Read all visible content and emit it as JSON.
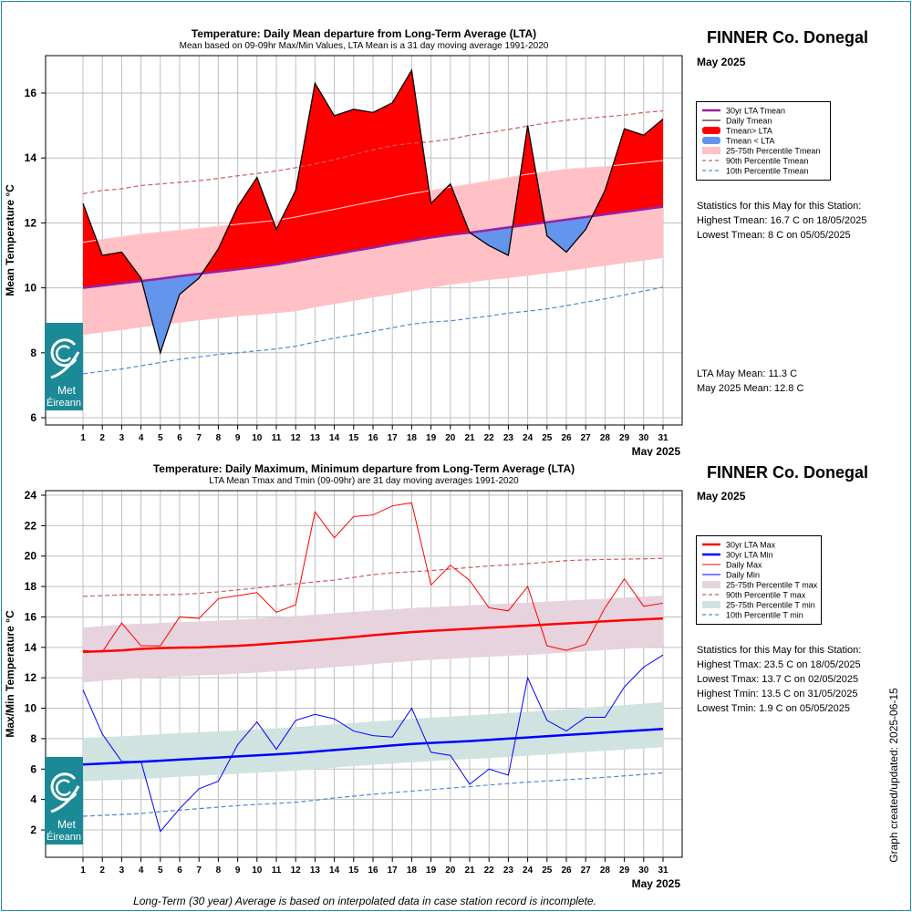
{
  "footer_note": "Long-Term (30 year) Average is based on interpolated data in case station record is incomplete.",
  "updated_label": "Graph created/updated:  2025-06-15",
  "logo": {
    "line1": "Met",
    "line2": "Éireann",
    "icon": "met-eireann-swirl-icon"
  },
  "colors": {
    "above": "#ff0000",
    "below": "#6495ed",
    "lta_mean": "#9b1fa3",
    "pct25_75_mean": "#ffc0c6",
    "p90": "#cd5c5c",
    "p10": "#4f87d6",
    "tmax": "#ff0000",
    "tmin": "#0000ff",
    "pct_max": "#e6d3dd",
    "pct_min": "#d0e3e1",
    "logo": "#1c8a96"
  },
  "panels": [
    {
      "station": "FINNER Co. Donegal",
      "month_label": "May 2025",
      "stats_title": "Statistics for this May for this Station:",
      "stats": [
        "Highest Tmean: 16.7 C on 18/05/2025",
        "Lowest Tmean: 8 C on 05/05/2025"
      ],
      "lta_lines": [
        "LTA May Mean: 11.3 C",
        "May 2025 Mean: 12.8 C"
      ],
      "chart_data": {
        "type": "area",
        "title": "Temperature: Daily Mean departure from Long-Term Average (LTA)",
        "subtitle": "Mean based on 09-09hr Max/Min Values, LTA Mean is a 31 day moving average 1991-2020",
        "xlabel": "May 2025",
        "ylabel": "Mean Temperature °C",
        "xlim": [
          1,
          31
        ],
        "ylim": [
          6,
          17
        ],
        "yticks": [
          6,
          8,
          10,
          12,
          14,
          16
        ],
        "x": [
          1,
          2,
          3,
          4,
          5,
          6,
          7,
          8,
          9,
          10,
          11,
          12,
          13,
          14,
          15,
          16,
          17,
          18,
          19,
          20,
          21,
          22,
          23,
          24,
          25,
          26,
          27,
          28,
          29,
          30,
          31
        ],
        "grid": true,
        "legend": {
          "placement": "right",
          "entries": [
            {
              "label": "30yr LTA Tmean",
              "style": "line",
              "color": "#9b1fa3",
              "width": 2.5
            },
            {
              "label": "Daily Tmean",
              "style": "line",
              "color": "#000000",
              "width": 1
            },
            {
              "label": "Tmean> LTA",
              "style": "box",
              "color": "#ff0000"
            },
            {
              "label": "Tmean < LTA",
              "style": "box",
              "color": "#6495ed"
            },
            {
              "label": "25-75th Percentile Tmean",
              "style": "band",
              "color": "#ffc0c6"
            },
            {
              "label": "90th Percentile Tmean",
              "style": "dash",
              "color": "#cd5c5c"
            },
            {
              "label": "10th Percentile Tmean",
              "style": "dash",
              "color": "#4f87d6"
            }
          ]
        },
        "series": [
          {
            "name": "Daily Tmean",
            "values": [
              12.6,
              11.0,
              11.1,
              10.3,
              8.0,
              9.8,
              10.3,
              11.2,
              12.5,
              13.4,
              11.8,
              13.0,
              16.3,
              15.3,
              15.5,
              15.4,
              15.7,
              16.7,
              12.6,
              13.2,
              11.7,
              11.3,
              11.0,
              15.0,
              11.6,
              11.1,
              11.8,
              13.0,
              14.9,
              14.7,
              15.2
            ]
          },
          {
            "name": "30yr LTA Tmean",
            "values": [
              10.0,
              10.07,
              10.14,
              10.21,
              10.28,
              10.36,
              10.43,
              10.5,
              10.57,
              10.64,
              10.72,
              10.82,
              10.93,
              11.03,
              11.14,
              11.24,
              11.35,
              11.45,
              11.55,
              11.63,
              11.7,
              11.78,
              11.86,
              11.94,
              12.02,
              12.1,
              12.18,
              12.26,
              12.34,
              12.42,
              12.5
            ]
          },
          {
            "name": "25th Percentile Tmean",
            "values": [
              8.55,
              8.63,
              8.7,
              8.78,
              8.86,
              8.93,
              9.0,
              9.06,
              9.12,
              9.17,
              9.22,
              9.28,
              9.4,
              9.5,
              9.6,
              9.7,
              9.8,
              9.9,
              10.0,
              10.1,
              10.17,
              10.24,
              10.3,
              10.37,
              10.45,
              10.52,
              10.6,
              10.68,
              10.76,
              10.84,
              10.92
            ]
          },
          {
            "name": "75th Percentile Tmean",
            "values": [
              11.4,
              11.5,
              11.58,
              11.66,
              11.72,
              11.78,
              11.84,
              11.9,
              11.96,
              12.02,
              12.08,
              12.18,
              12.3,
              12.42,
              12.54,
              12.66,
              12.78,
              12.9,
              13.0,
              13.1,
              13.2,
              13.3,
              13.4,
              13.5,
              13.58,
              13.66,
              13.7,
              13.74,
              13.8,
              13.86,
              13.92
            ]
          },
          {
            "name": "90th Percentile Tmean",
            "values": [
              12.9,
              13.0,
              13.05,
              13.15,
              13.2,
              13.25,
              13.3,
              13.37,
              13.45,
              13.52,
              13.6,
              13.7,
              13.82,
              13.95,
              14.1,
              14.25,
              14.38,
              14.45,
              14.5,
              14.58,
              14.7,
              14.78,
              14.88,
              14.98,
              15.08,
              15.16,
              15.22,
              15.27,
              15.32,
              15.4,
              15.45
            ]
          },
          {
            "name": "10th Percentile Tmean",
            "values": [
              7.35,
              7.43,
              7.5,
              7.6,
              7.7,
              7.8,
              7.87,
              7.95,
              8.0,
              8.06,
              8.12,
              8.2,
              8.33,
              8.45,
              8.55,
              8.66,
              8.77,
              8.88,
              8.95,
              8.98,
              9.06,
              9.13,
              9.22,
              9.28,
              9.35,
              9.45,
              9.56,
              9.66,
              9.78,
              9.9,
              10.02
            ]
          }
        ]
      }
    },
    {
      "station": "FINNER Co. Donegal",
      "month_label": "May 2025",
      "stats_title": "Statistics for this May for this Station:",
      "stats": [
        "Highest Tmax: 23.5 C on 18/05/2025",
        "Lowest Tmax: 13.7 C on 02/05/2025",
        "Highest Tmin: 13.5 C on 31/05/2025",
        "Lowest Tmin: 1.9 C on 05/05/2025"
      ],
      "lta_lines": [],
      "chart_data": {
        "type": "line",
        "title": "Temperature: Daily Maximum, Minimum departure from Long-Term Average (LTA)",
        "subtitle": "LTA Mean Tmax and Tmin (09-09hr) are 31 day moving averages 1991-2020",
        "xlabel": "May 2025",
        "ylabel": "Max/Min Temperature °C",
        "xlim": [
          1,
          31
        ],
        "ylim": [
          1,
          24.4
        ],
        "yticks": [
          2,
          4,
          6,
          8,
          10,
          12,
          14,
          16,
          18,
          20,
          22,
          24
        ],
        "x": [
          1,
          2,
          3,
          4,
          5,
          6,
          7,
          8,
          9,
          10,
          11,
          12,
          13,
          14,
          15,
          16,
          17,
          18,
          19,
          20,
          21,
          22,
          23,
          24,
          25,
          26,
          27,
          28,
          29,
          30,
          31
        ],
        "grid": true,
        "legend": {
          "placement": "right",
          "entries": [
            {
              "label": "30yr LTA Max",
              "style": "line",
              "color": "#ff0000",
              "width": 2.5
            },
            {
              "label": "30yr LTA Min",
              "style": "line",
              "color": "#0000ff",
              "width": 2.5
            },
            {
              "label": "Daily Max",
              "style": "line",
              "color": "#ff0000",
              "width": 1
            },
            {
              "label": "Daily Min",
              "style": "line",
              "color": "#0000ff",
              "width": 1
            },
            {
              "label": "25-75th Percentile T max",
              "style": "band",
              "color": "#e6d3dd"
            },
            {
              "label": "90th Percentile T max",
              "style": "dash",
              "color": "#cd5c5c"
            },
            {
              "label": "25-75th Percentile T min",
              "style": "band",
              "color": "#d0e3e1"
            },
            {
              "label": "10th Percentile T min",
              "style": "dash",
              "color": "#4f87d6"
            }
          ]
        },
        "series": [
          {
            "name": "Daily Max",
            "values": [
              13.8,
              13.7,
              15.6,
              14.1,
              14.1,
              16.0,
              15.9,
              17.2,
              17.4,
              17.6,
              16.3,
              16.8,
              22.9,
              21.2,
              22.6,
              22.7,
              23.3,
              23.5,
              18.1,
              19.4,
              18.4,
              16.6,
              16.4,
              18.0,
              14.1,
              13.8,
              14.2,
              16.6,
              18.5,
              16.7,
              16.9
            ]
          },
          {
            "name": "Daily Min",
            "values": [
              11.2,
              8.3,
              6.5,
              6.5,
              1.9,
              3.4,
              4.7,
              5.2,
              7.6,
              9.1,
              7.3,
              9.2,
              9.6,
              9.3,
              8.5,
              8.2,
              8.1,
              10.0,
              7.1,
              6.9,
              5.0,
              6.0,
              5.6,
              12.0,
              9.2,
              8.5,
              9.4,
              9.4,
              11.4,
              12.7,
              13.5
            ]
          },
          {
            "name": "30yr LTA Max",
            "values": [
              13.7,
              13.75,
              13.8,
              13.9,
              13.95,
              13.98,
              14.0,
              14.05,
              14.1,
              14.18,
              14.27,
              14.36,
              14.46,
              14.57,
              14.68,
              14.8,
              14.9,
              15.0,
              15.08,
              15.15,
              15.22,
              15.29,
              15.36,
              15.43,
              15.5,
              15.57,
              15.64,
              15.71,
              15.78,
              15.84,
              15.9
            ]
          },
          {
            "name": "30yr LTA Min",
            "values": [
              6.3,
              6.36,
              6.42,
              6.48,
              6.55,
              6.62,
              6.69,
              6.76,
              6.83,
              6.9,
              6.97,
              7.05,
              7.15,
              7.25,
              7.35,
              7.45,
              7.55,
              7.65,
              7.72,
              7.78,
              7.84,
              7.92,
              8.0,
              8.08,
              8.16,
              8.24,
              8.32,
              8.4,
              8.48,
              8.56,
              8.64
            ]
          },
          {
            "name": "25th Percentile T max",
            "values": [
              11.7,
              11.8,
              11.9,
              12.0,
              12.05,
              12.1,
              12.15,
              12.2,
              12.27,
              12.34,
              12.42,
              12.5,
              12.6,
              12.7,
              12.8,
              12.9,
              13.0,
              13.1,
              13.18,
              13.25,
              13.32,
              13.38,
              13.44,
              13.5,
              13.58,
              13.66,
              13.74,
              13.82,
              13.9,
              13.98,
              14.05
            ]
          },
          {
            "name": "75th Percentile T max",
            "values": [
              15.3,
              15.4,
              15.5,
              15.55,
              15.6,
              15.65,
              15.7,
              15.76,
              15.82,
              15.9,
              15.98,
              16.06,
              16.15,
              16.24,
              16.33,
              16.42,
              16.5,
              16.58,
              16.65,
              16.7,
              16.76,
              16.82,
              16.88,
              16.94,
              17.0,
              17.07,
              17.14,
              17.2,
              17.27,
              17.34,
              17.4
            ]
          },
          {
            "name": "90th Percentile T max",
            "values": [
              17.35,
              17.4,
              17.45,
              17.45,
              17.45,
              17.48,
              17.55,
              17.65,
              17.78,
              17.9,
              18.05,
              18.18,
              18.3,
              18.42,
              18.6,
              18.78,
              18.9,
              18.97,
              19.05,
              19.15,
              19.25,
              19.35,
              19.42,
              19.5,
              19.6,
              19.7,
              19.75,
              19.78,
              19.8,
              19.82,
              19.85
            ]
          },
          {
            "name": "25th Percentile T min",
            "values": [
              5.2,
              5.25,
              5.3,
              5.35,
              5.42,
              5.5,
              5.55,
              5.62,
              5.7,
              5.76,
              5.82,
              5.9,
              6.0,
              6.1,
              6.2,
              6.28,
              6.36,
              6.44,
              6.52,
              6.6,
              6.66,
              6.72,
              6.8,
              6.88,
              6.96,
              7.04,
              7.12,
              7.2,
              7.28,
              7.36,
              7.44
            ]
          },
          {
            "name": "75th Percentile T min",
            "values": [
              8.05,
              8.1,
              8.15,
              8.22,
              8.3,
              8.36,
              8.42,
              8.48,
              8.54,
              8.6,
              8.68,
              8.76,
              8.85,
              8.94,
              9.03,
              9.12,
              9.2,
              9.3,
              9.38,
              9.45,
              9.52,
              9.6,
              9.68,
              9.76,
              9.85,
              9.94,
              10.03,
              10.12,
              10.2,
              10.3,
              10.4
            ]
          },
          {
            "name": "10th Percentile T min",
            "values": [
              2.9,
              2.96,
              3.02,
              3.08,
              3.2,
              3.3,
              3.4,
              3.5,
              3.6,
              3.68,
              3.74,
              3.82,
              3.95,
              4.1,
              4.22,
              4.34,
              4.45,
              4.55,
              4.65,
              4.75,
              4.85,
              4.95,
              5.05,
              5.14,
              5.22,
              5.3,
              5.38,
              5.46,
              5.55,
              5.65,
              5.75
            ]
          }
        ]
      }
    }
  ]
}
